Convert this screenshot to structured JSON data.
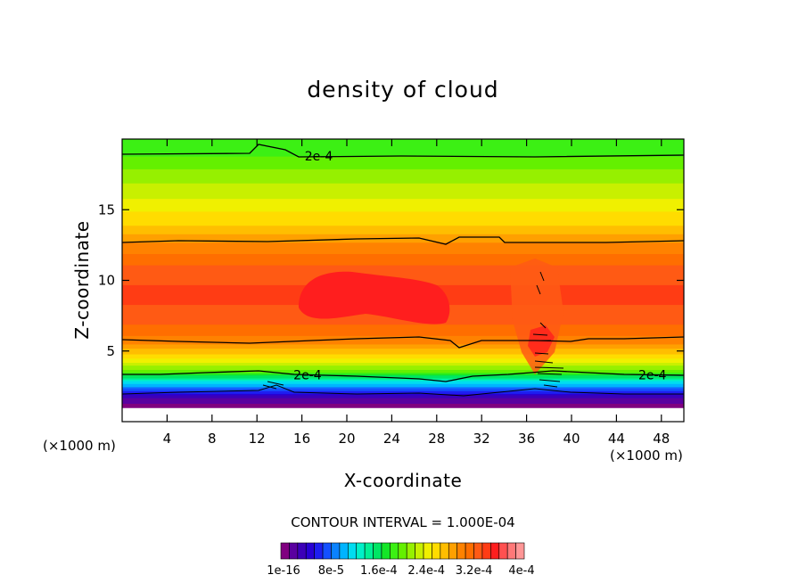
{
  "chart_data": {
    "type": "heatmap",
    "title": "density of cloud",
    "xlabel": "X-coordinate",
    "ylabel": "Z-coordinate",
    "x_unit_label": "(×1000 m)",
    "xlim": [
      0,
      50
    ],
    "ylim": [
      0,
      20
    ],
    "x_ticks": [
      4,
      8,
      12,
      16,
      20,
      24,
      28,
      32,
      36,
      40,
      44,
      48
    ],
    "y_ticks": [
      5,
      10,
      15
    ],
    "contour_interval_label": "CONTOUR INTERVAL = 1.000E-04",
    "contour_labels": [
      {
        "text": "2e-4",
        "x": 17.5,
        "z": 18.8
      },
      {
        "text": "2e-4",
        "x": 16.5,
        "z": 3.3
      },
      {
        "text": "2e-4",
        "x": 47.2,
        "z": 3.3
      }
    ],
    "vertical_profile": [
      {
        "z": 1.0,
        "value": 0.0
      },
      {
        "z": 1.7,
        "value": 3e-05
      },
      {
        "z": 2.3,
        "value": 8e-05
      },
      {
        "z": 3.0,
        "value": 0.00014
      },
      {
        "z": 3.5,
        "value": 0.0002
      },
      {
        "z": 4.5,
        "value": 0.00026
      },
      {
        "z": 5.8,
        "value": 0.00031
      },
      {
        "z": 7.0,
        "value": 0.00033
      },
      {
        "z": 9.0,
        "value": 0.00035
      },
      {
        "z": 11.0,
        "value": 0.00033
      },
      {
        "z": 12.7,
        "value": 0.0003
      },
      {
        "z": 14.0,
        "value": 0.00027
      },
      {
        "z": 16.0,
        "value": 0.00024
      },
      {
        "z": 17.5,
        "value": 0.00022
      },
      {
        "z": 18.8,
        "value": 0.0002
      },
      {
        "z": 20.0,
        "value": 0.00019
      }
    ],
    "colorbar": {
      "tick_labels": [
        "1e-16",
        "8e-5",
        "1.6e-4",
        "2.4e-4",
        "3.2e-4",
        "4e-4"
      ],
      "colors": [
        "#800080",
        "#5a00a0",
        "#3c00b8",
        "#2800d4",
        "#1e1ef0",
        "#1450ff",
        "#0a82ff",
        "#00b4ff",
        "#00dcf0",
        "#00f0c8",
        "#00f096",
        "#00e664",
        "#14e628",
        "#3cf014",
        "#64f000",
        "#96f000",
        "#c8f000",
        "#f0f000",
        "#ffdc00",
        "#ffbe00",
        "#ffa000",
        "#ff8200",
        "#ff6e00",
        "#ff5a14",
        "#ff3c14",
        "#ff1e1e",
        "#ff5050",
        "#ff7878",
        "#ff9696"
      ]
    }
  }
}
